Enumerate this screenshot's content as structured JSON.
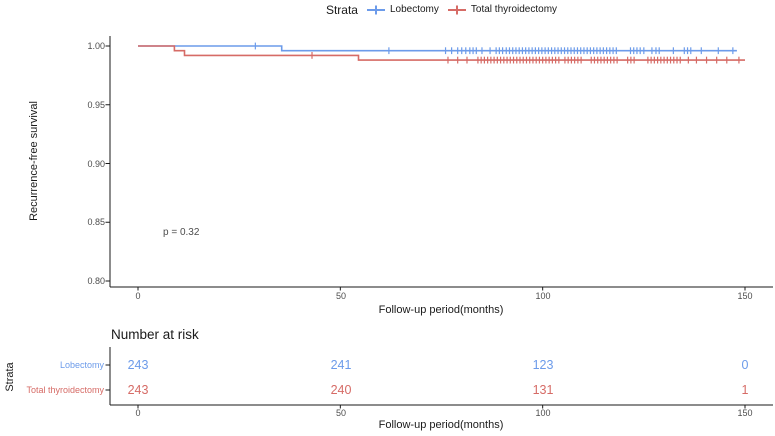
{
  "legend": {
    "title": "Strata",
    "items": [
      {
        "label": "Lobectomy",
        "color": "#6C9BEA"
      },
      {
        "label": "Total thyroidectomy",
        "color": "#D66B66"
      }
    ]
  },
  "colors": {
    "axis_line": "#1a1a1a",
    "axis_text": "#4d4d4d",
    "lobectomy_blue": "#6C9BEA",
    "total_thyroidectomy_red": "#D66B66"
  },
  "chart_data": {
    "type": "line",
    "subtype": "kaplan-meier-step-curve",
    "title": "",
    "xlabel": "Follow-up period(months)",
    "ylabel": "Recurrence-free survival",
    "xlim": [
      0,
      157
    ],
    "ylim": [
      0.8,
      1.0
    ],
    "grid": false,
    "x_ticks": [
      0,
      50,
      100,
      150
    ],
    "x_tick_labels": [
      "0",
      "50",
      "100",
      "150"
    ],
    "y_ticks": [
      1.0,
      0.95,
      0.9,
      0.85,
      0.8
    ],
    "y_tick_labels": [
      "1.00",
      "0.95",
      "0.90",
      "0.85",
      "0.80"
    ],
    "p_value_label": "p = 0.32",
    "legend_position": "top",
    "series": [
      {
        "name": "Lobectomy",
        "color": "#6C9BEA",
        "steps": [
          [
            0,
            1.0
          ],
          [
            35.5,
            1.0
          ],
          [
            35.5,
            0.996
          ],
          [
            148,
            0.996
          ]
        ],
        "censor_times": [
          29,
          62,
          76,
          77.5,
          79,
          80,
          81,
          82,
          82.8,
          83.6,
          85,
          87,
          88.5,
          89.3,
          90.1,
          91,
          91.8,
          92.6,
          93.4,
          94.2,
          95,
          95.8,
          96.6,
          97.4,
          98.2,
          99,
          99.8,
          100.6,
          101.4,
          102.2,
          103,
          103.8,
          104.6,
          105.4,
          106.2,
          107,
          107.8,
          108.6,
          109.4,
          110.2,
          111,
          111.8,
          112.6,
          113.4,
          114.2,
          115,
          115.8,
          116.6,
          117.4,
          118.2,
          121.7,
          122.5,
          123.3,
          124.1,
          125,
          127,
          128,
          128.8,
          132.3,
          135,
          135.8,
          136.6,
          139.2,
          143.4,
          147
        ]
      },
      {
        "name": "Total thyroidectomy",
        "color": "#D66B66",
        "steps": [
          [
            0,
            1.0
          ],
          [
            9,
            1.0
          ],
          [
            9,
            0.996
          ],
          [
            11.5,
            0.996
          ],
          [
            11.5,
            0.992
          ],
          [
            54.5,
            0.992
          ],
          [
            54.5,
            0.988
          ],
          [
            150,
            0.988
          ]
        ],
        "censor_times": [
          43,
          76.6,
          79,
          81.3,
          84,
          84.8,
          85.6,
          86.4,
          87.2,
          88,
          88.8,
          89.6,
          90.4,
          91.2,
          92,
          92.8,
          93.6,
          94.4,
          95.2,
          96,
          96.8,
          97.6,
          98.4,
          99.2,
          100,
          100.8,
          101.6,
          102.4,
          103.2,
          104,
          105.5,
          106.3,
          107.1,
          107.9,
          108.7,
          109.5,
          112,
          112.8,
          113.6,
          114.4,
          115.2,
          116,
          116.8,
          117.6,
          118.4,
          121,
          121.8,
          122.6,
          126,
          126.8,
          127.6,
          128.4,
          129.2,
          130,
          130.8,
          131.6,
          132.4,
          133.2,
          134,
          136,
          138,
          140.5,
          143,
          145.5,
          148.5
        ]
      }
    ]
  },
  "risk_table": {
    "title": "Number at risk",
    "ylabel": "Strata",
    "xlabel": "Follow-up period(months)",
    "x_ticks": [
      0,
      50,
      100,
      150
    ],
    "x_tick_labels": [
      "0",
      "50",
      "100",
      "150"
    ],
    "rows": [
      {
        "label": "Lobectomy",
        "color": "#6C9BEA",
        "values": [
          "243",
          "241",
          "123",
          "0"
        ]
      },
      {
        "label": "Total thyroidectomy",
        "color": "#D66B66",
        "values": [
          "243",
          "240",
          "131",
          "1"
        ]
      }
    ]
  }
}
